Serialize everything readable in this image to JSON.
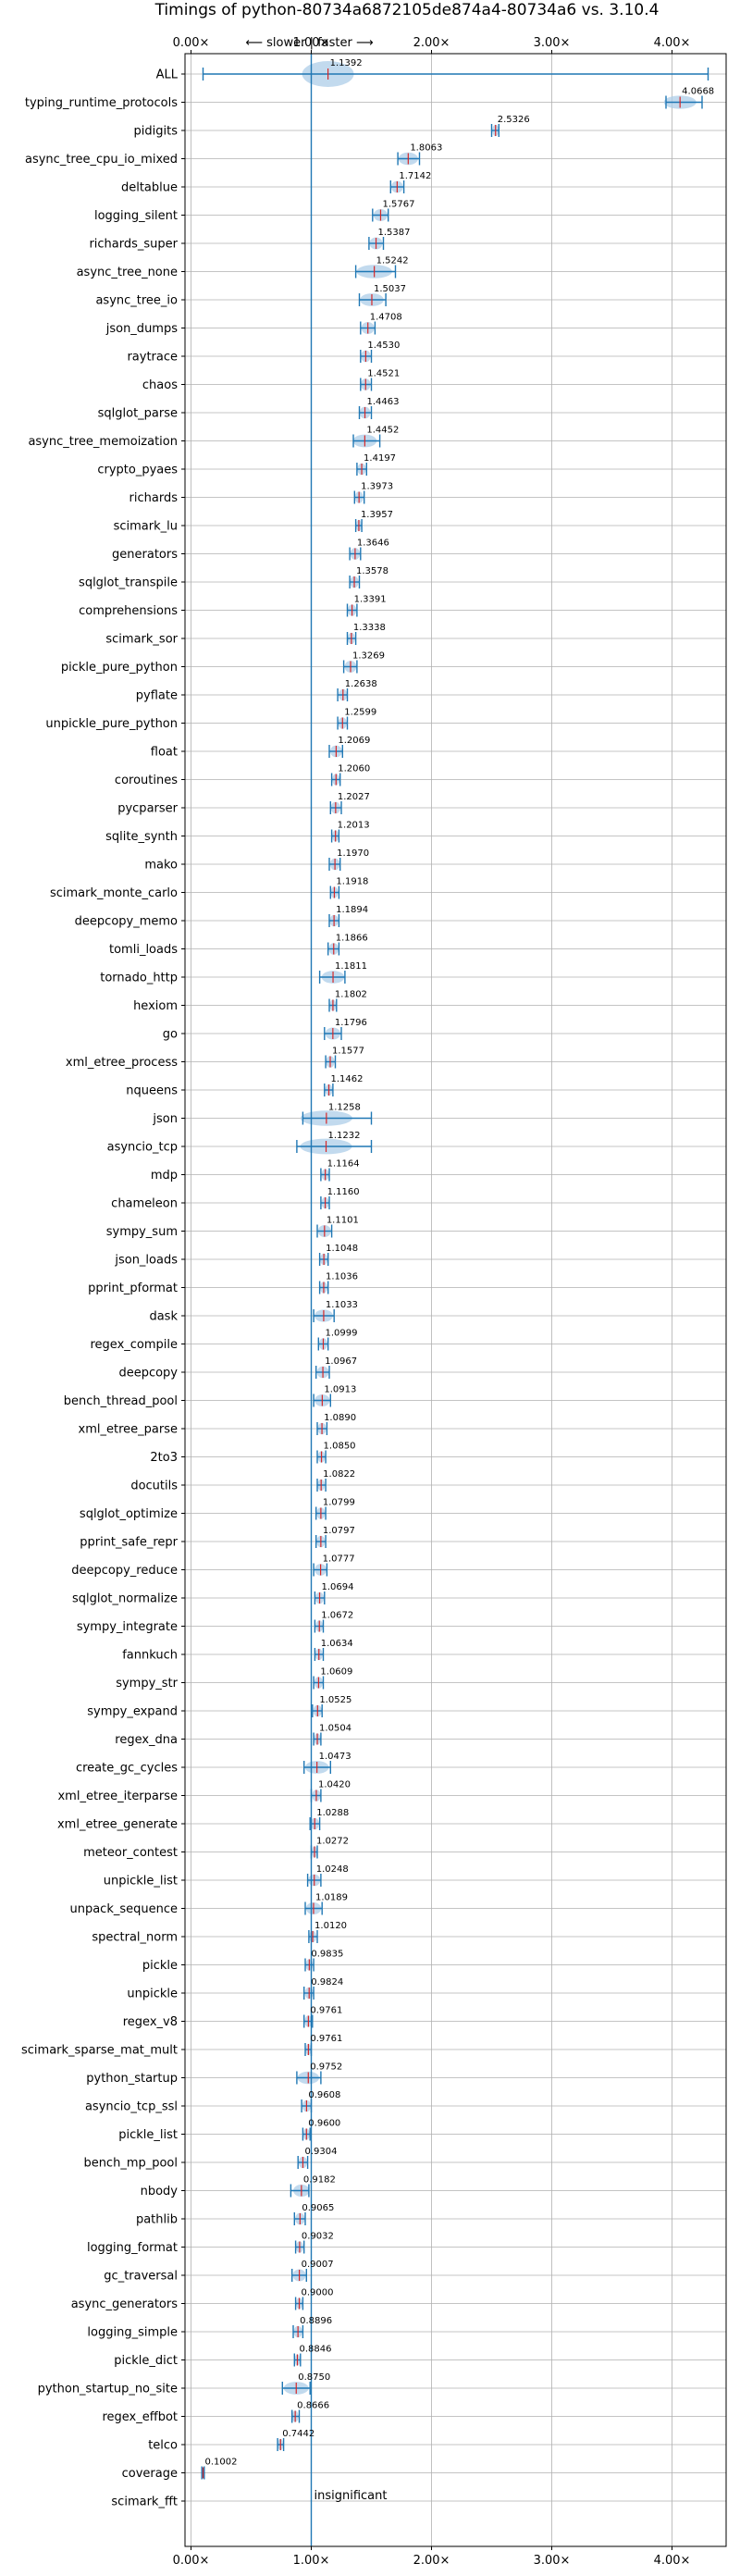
{
  "chart_data": {
    "type": "violin",
    "title": "Timings of python-80734a6872105de874a4-80734a6 vs. 3.10.4",
    "annotation": "⟵ slower | faster ⟶",
    "x_ticks": [
      "0.00×",
      "1.00×",
      "2.00×",
      "3.00×",
      "4.00×"
    ],
    "x_tick_values": [
      0,
      1,
      2,
      3,
      4
    ],
    "xlim": [
      -0.05,
      4.45
    ],
    "reference_line": 1.0,
    "grid": true,
    "colors": {
      "violin": "#aecde8",
      "whisker": "#1f77b4",
      "median": "#d62728",
      "grid": "#b0b0b0"
    },
    "insignificant_label": "insignificant",
    "benchmarks": [
      {
        "name": "ALL",
        "value": 1.1392,
        "low": 0.1,
        "high": 4.3
      },
      {
        "name": "typing_runtime_protocols",
        "value": 4.0668,
        "low": 3.95,
        "high": 4.25
      },
      {
        "name": "pidigits",
        "value": 2.5326,
        "low": 2.5,
        "high": 2.56
      },
      {
        "name": "async_tree_cpu_io_mixed",
        "value": 1.8063,
        "low": 1.72,
        "high": 1.9
      },
      {
        "name": "deltablue",
        "value": 1.7142,
        "low": 1.66,
        "high": 1.77
      },
      {
        "name": "logging_silent",
        "value": 1.5767,
        "low": 1.51,
        "high": 1.64
      },
      {
        "name": "richards_super",
        "value": 1.5387,
        "low": 1.48,
        "high": 1.6
      },
      {
        "name": "async_tree_none",
        "value": 1.5242,
        "low": 1.37,
        "high": 1.7
      },
      {
        "name": "async_tree_io",
        "value": 1.5037,
        "low": 1.4,
        "high": 1.62
      },
      {
        "name": "json_dumps",
        "value": 1.4708,
        "low": 1.41,
        "high": 1.53
      },
      {
        "name": "raytrace",
        "value": 1.453,
        "low": 1.41,
        "high": 1.5
      },
      {
        "name": "chaos",
        "value": 1.4521,
        "low": 1.41,
        "high": 1.5
      },
      {
        "name": "sqlglot_parse",
        "value": 1.4463,
        "low": 1.4,
        "high": 1.5
      },
      {
        "name": "async_tree_memoization",
        "value": 1.4452,
        "low": 1.35,
        "high": 1.57
      },
      {
        "name": "crypto_pyaes",
        "value": 1.4197,
        "low": 1.38,
        "high": 1.46
      },
      {
        "name": "richards",
        "value": 1.3973,
        "low": 1.36,
        "high": 1.44
      },
      {
        "name": "scimark_lu",
        "value": 1.3957,
        "low": 1.37,
        "high": 1.42
      },
      {
        "name": "generators",
        "value": 1.3646,
        "low": 1.32,
        "high": 1.41
      },
      {
        "name": "sqlglot_transpile",
        "value": 1.3578,
        "low": 1.32,
        "high": 1.4
      },
      {
        "name": "comprehensions",
        "value": 1.3391,
        "low": 1.3,
        "high": 1.38
      },
      {
        "name": "scimark_sor",
        "value": 1.3338,
        "low": 1.3,
        "high": 1.37
      },
      {
        "name": "pickle_pure_python",
        "value": 1.3269,
        "low": 1.27,
        "high": 1.38
      },
      {
        "name": "pyflate",
        "value": 1.2638,
        "low": 1.22,
        "high": 1.3
      },
      {
        "name": "unpickle_pure_python",
        "value": 1.2599,
        "low": 1.22,
        "high": 1.3
      },
      {
        "name": "float",
        "value": 1.2069,
        "low": 1.15,
        "high": 1.26
      },
      {
        "name": "coroutines",
        "value": 1.206,
        "low": 1.17,
        "high": 1.24
      },
      {
        "name": "pycparser",
        "value": 1.2027,
        "low": 1.16,
        "high": 1.25
      },
      {
        "name": "sqlite_synth",
        "value": 1.2013,
        "low": 1.17,
        "high": 1.23
      },
      {
        "name": "mako",
        "value": 1.197,
        "low": 1.15,
        "high": 1.24
      },
      {
        "name": "scimark_monte_carlo",
        "value": 1.1918,
        "low": 1.16,
        "high": 1.23
      },
      {
        "name": "deepcopy_memo",
        "value": 1.1894,
        "low": 1.15,
        "high": 1.23
      },
      {
        "name": "tomli_loads",
        "value": 1.1866,
        "low": 1.14,
        "high": 1.23
      },
      {
        "name": "tornado_http",
        "value": 1.1811,
        "low": 1.07,
        "high": 1.28
      },
      {
        "name": "hexiom",
        "value": 1.1802,
        "low": 1.15,
        "high": 1.21
      },
      {
        "name": "go",
        "value": 1.1796,
        "low": 1.11,
        "high": 1.25
      },
      {
        "name": "xml_etree_process",
        "value": 1.1577,
        "low": 1.12,
        "high": 1.2
      },
      {
        "name": "nqueens",
        "value": 1.1462,
        "low": 1.11,
        "high": 1.18
      },
      {
        "name": "json",
        "value": 1.1258,
        "low": 0.93,
        "high": 1.5
      },
      {
        "name": "asyncio_tcp",
        "value": 1.1232,
        "low": 0.88,
        "high": 1.5
      },
      {
        "name": "mdp",
        "value": 1.1164,
        "low": 1.08,
        "high": 1.15
      },
      {
        "name": "chameleon",
        "value": 1.116,
        "low": 1.08,
        "high": 1.15
      },
      {
        "name": "sympy_sum",
        "value": 1.1101,
        "low": 1.05,
        "high": 1.17
      },
      {
        "name": "json_loads",
        "value": 1.1048,
        "low": 1.07,
        "high": 1.14
      },
      {
        "name": "pprint_pformat",
        "value": 1.1036,
        "low": 1.07,
        "high": 1.14
      },
      {
        "name": "dask",
        "value": 1.1033,
        "low": 1.02,
        "high": 1.19
      },
      {
        "name": "regex_compile",
        "value": 1.0999,
        "low": 1.06,
        "high": 1.14
      },
      {
        "name": "deepcopy",
        "value": 1.0967,
        "low": 1.04,
        "high": 1.15
      },
      {
        "name": "bench_thread_pool",
        "value": 1.0913,
        "low": 1.02,
        "high": 1.16
      },
      {
        "name": "xml_etree_parse",
        "value": 1.089,
        "low": 1.05,
        "high": 1.13
      },
      {
        "name": "2to3",
        "value": 1.085,
        "low": 1.05,
        "high": 1.12
      },
      {
        "name": "docutils",
        "value": 1.0822,
        "low": 1.05,
        "high": 1.12
      },
      {
        "name": "sqlglot_optimize",
        "value": 1.0799,
        "low": 1.04,
        "high": 1.12
      },
      {
        "name": "pprint_safe_repr",
        "value": 1.0797,
        "low": 1.04,
        "high": 1.12
      },
      {
        "name": "deepcopy_reduce",
        "value": 1.0777,
        "low": 1.02,
        "high": 1.13
      },
      {
        "name": "sqlglot_normalize",
        "value": 1.0694,
        "low": 1.03,
        "high": 1.11
      },
      {
        "name": "sympy_integrate",
        "value": 1.0672,
        "low": 1.03,
        "high": 1.1
      },
      {
        "name": "fannkuch",
        "value": 1.0634,
        "low": 1.03,
        "high": 1.1
      },
      {
        "name": "sympy_str",
        "value": 1.0609,
        "low": 1.02,
        "high": 1.1
      },
      {
        "name": "sympy_expand",
        "value": 1.0525,
        "low": 1.01,
        "high": 1.09
      },
      {
        "name": "regex_dna",
        "value": 1.0504,
        "low": 1.02,
        "high": 1.08
      },
      {
        "name": "create_gc_cycles",
        "value": 1.0473,
        "low": 0.94,
        "high": 1.16
      },
      {
        "name": "xml_etree_iterparse",
        "value": 1.042,
        "low": 1.0,
        "high": 1.08
      },
      {
        "name": "xml_etree_generate",
        "value": 1.0288,
        "low": 0.99,
        "high": 1.07
      },
      {
        "name": "meteor_contest",
        "value": 1.0272,
        "low": 1.0,
        "high": 1.05
      },
      {
        "name": "unpickle_list",
        "value": 1.0248,
        "low": 0.97,
        "high": 1.08
      },
      {
        "name": "unpack_sequence",
        "value": 1.0189,
        "low": 0.95,
        "high": 1.09
      },
      {
        "name": "spectral_norm",
        "value": 1.012,
        "low": 0.98,
        "high": 1.05
      },
      {
        "name": "pickle",
        "value": 0.9835,
        "low": 0.95,
        "high": 1.02
      },
      {
        "name": "unpickle",
        "value": 0.9824,
        "low": 0.94,
        "high": 1.02
      },
      {
        "name": "regex_v8",
        "value": 0.9761,
        "low": 0.94,
        "high": 1.01
      },
      {
        "name": "scimark_sparse_mat_mult",
        "value": 0.9761,
        "low": 0.95,
        "high": 1.0
      },
      {
        "name": "python_startup",
        "value": 0.9752,
        "low": 0.88,
        "high": 1.08
      },
      {
        "name": "asyncio_tcp_ssl",
        "value": 0.9608,
        "low": 0.92,
        "high": 1.0
      },
      {
        "name": "pickle_list",
        "value": 0.96,
        "low": 0.93,
        "high": 0.99
      },
      {
        "name": "bench_mp_pool",
        "value": 0.9304,
        "low": 0.89,
        "high": 0.97
      },
      {
        "name": "nbody",
        "value": 0.9182,
        "low": 0.83,
        "high": 0.98
      },
      {
        "name": "pathlib",
        "value": 0.9065,
        "low": 0.86,
        "high": 0.95
      },
      {
        "name": "logging_format",
        "value": 0.9032,
        "low": 0.87,
        "high": 0.94
      },
      {
        "name": "gc_traversal",
        "value": 0.9007,
        "low": 0.84,
        "high": 0.96
      },
      {
        "name": "async_generators",
        "value": 0.9,
        "low": 0.87,
        "high": 0.93
      },
      {
        "name": "logging_simple",
        "value": 0.8896,
        "low": 0.85,
        "high": 0.93
      },
      {
        "name": "pickle_dict",
        "value": 0.8846,
        "low": 0.86,
        "high": 0.91
      },
      {
        "name": "python_startup_no_site",
        "value": 0.875,
        "low": 0.76,
        "high": 0.99
      },
      {
        "name": "regex_effbot",
        "value": 0.8666,
        "low": 0.84,
        "high": 0.9
      },
      {
        "name": "telco",
        "value": 0.7442,
        "low": 0.72,
        "high": 0.77
      },
      {
        "name": "coverage",
        "value": 0.1002,
        "low": 0.09,
        "high": 0.11
      },
      {
        "name": "scimark_fft",
        "value": null,
        "low": null,
        "high": null
      }
    ]
  }
}
